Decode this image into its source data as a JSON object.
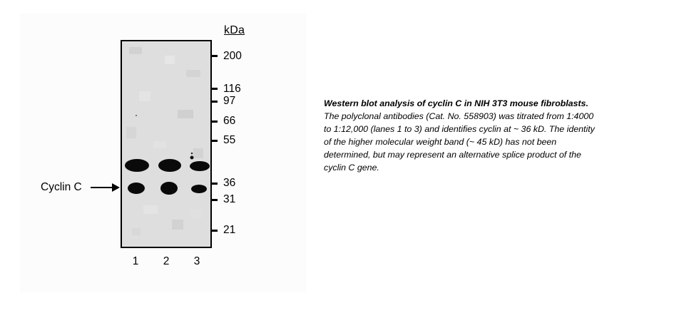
{
  "figure": {
    "units_label": "kDa",
    "markers": [
      {
        "label": "200",
        "kda": 200
      },
      {
        "label": "116",
        "kda": 116
      },
      {
        "label": "97",
        "kda": 97
      },
      {
        "label": "66",
        "kda": 66
      },
      {
        "label": "55",
        "kda": 55
      },
      {
        "label": "36",
        "kda": 36
      },
      {
        "label": "31",
        "kda": 31
      },
      {
        "label": "21",
        "kda": 21
      }
    ],
    "band_label": "Cyclin C",
    "lanes": [
      "1",
      "2",
      "3"
    ],
    "colors": {
      "band": "#0a0a0a",
      "membrane": "#dcdcdc",
      "frame": "#000000"
    }
  },
  "caption": {
    "title": "Western blot analysis of cyclin C in NIH 3T3 mouse fibroblasts.",
    "body": " The polyclonal antibodies (Cat. No. 558903) was titrated from 1:4000 to 1:12,000 (lanes 1 to 3) and identifies cyclin at ~ 36 kD. The identity of the higher molecular weight band (~ 45 kD) has not been determined, but may represent an alternative splice product of the cyclin C gene."
  }
}
